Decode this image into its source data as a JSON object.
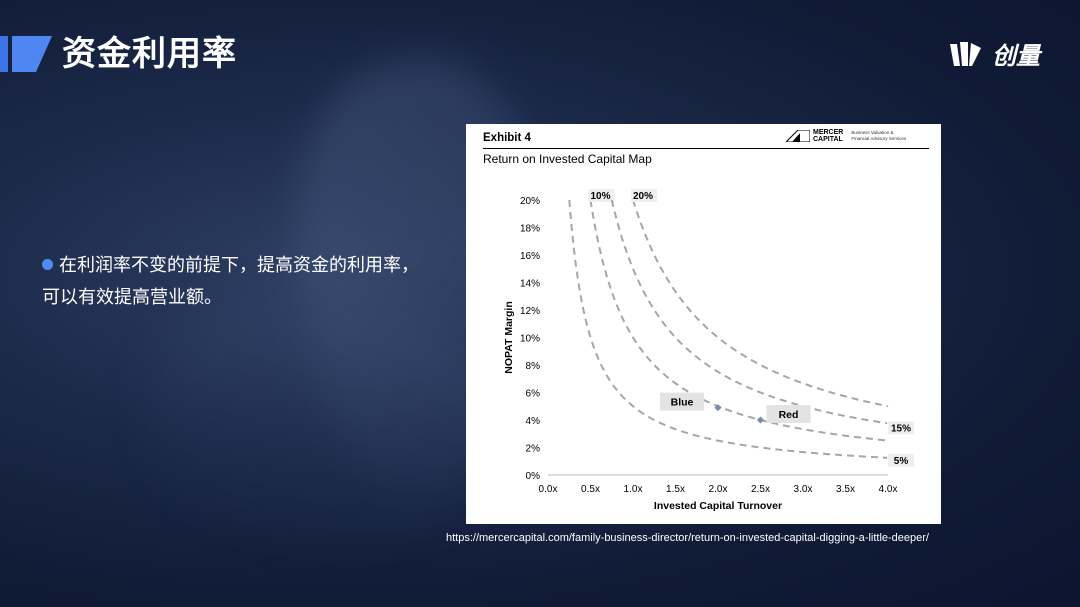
{
  "slide": {
    "title": "资金利用率",
    "logo_text": "创量",
    "bullet": "在利润率不变的前提下，提高资金的利用率，可以有效提高营业额。",
    "source_url": "https://mercercapital.com/family-business-director/return-on-invested-capital-digging-a-little-deeper/",
    "accent_color": "#4f8cf7"
  },
  "exhibit": {
    "label": "Exhibit 4",
    "subtitle": "Return on Invested Capital Map",
    "brand_top": "MERCER",
    "brand_bottom": "CAPITAL",
    "brand_tagline_1": "Business Valuation &",
    "brand_tagline_2": "Financial Advisory Services"
  },
  "chart_data": {
    "type": "line",
    "xlabel": "Invested Capital Turnover",
    "ylabel": "NOPAT Margin",
    "x_ticks": [
      "0.0x",
      "0.5x",
      "1.0x",
      "1.5x",
      "2.0x",
      "2.5x",
      "3.0x",
      "3.5x",
      "4.0x"
    ],
    "y_ticks": [
      "0%",
      "2%",
      "4%",
      "6%",
      "8%",
      "10%",
      "12%",
      "14%",
      "16%",
      "18%",
      "20%"
    ],
    "xlim": [
      0,
      4
    ],
    "ylim": [
      0,
      20
    ],
    "line_style": "dashed",
    "line_color": "#a6a6a6",
    "series": [
      {
        "name": "5%",
        "roic": 5,
        "label_pos": "end"
      },
      {
        "name": "10%",
        "roic": 10,
        "label_pos": "top"
      },
      {
        "name": "15%",
        "roic": 15,
        "label_pos": "end"
      },
      {
        "name": "20%",
        "roic": 20,
        "label_pos": "top"
      }
    ],
    "points": [
      {
        "name": "Blue",
        "x": 2.0,
        "y": 4.9
      },
      {
        "name": "Red",
        "x": 2.5,
        "y": 4.0
      }
    ]
  }
}
